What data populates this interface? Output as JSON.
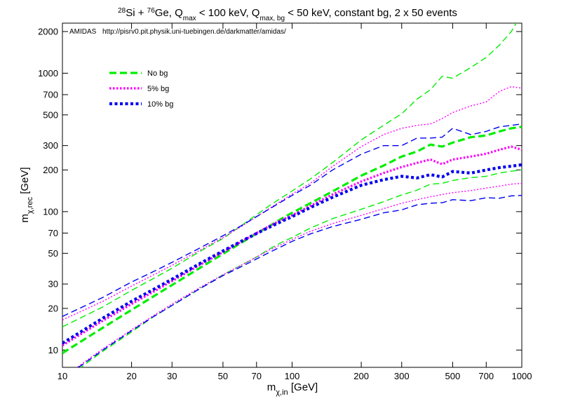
{
  "chart_data": {
    "type": "line",
    "title_parts": {
      "a_sup": "28",
      "a": "Si + ",
      "b_sup": "76",
      "b": "Ge, Q",
      "c_sub": "max",
      "c": " < 100 keV, Q",
      "d_sub": "max, bg",
      "d": " < 50 keV, constant bg, 2 x 50 events"
    },
    "annotation": {
      "program": "AMIDAS",
      "url": "http://pisrv0.pit.physik.uni-tuebingen.de/darkmatter/amidas/"
    },
    "xlabel": {
      "main": "m",
      "sub": "χ,in",
      "unit": " [GeV]"
    },
    "ylabel": {
      "main": "m",
      "sub": "χ,rec",
      "unit": " [GeV]"
    },
    "x_scale": "log",
    "y_scale": "log",
    "xlim": [
      10,
      1000
    ],
    "ylim": [
      7.5,
      2300
    ],
    "x_ticks": [
      10,
      20,
      30,
      50,
      70,
      100,
      200,
      300,
      500,
      700,
      1000
    ],
    "y_ticks": [
      10,
      20,
      30,
      50,
      70,
      100,
      200,
      300,
      500,
      700,
      1000,
      2000
    ],
    "legend_position": "top-left",
    "x": [
      10,
      15,
      20,
      25,
      30,
      40,
      50,
      60,
      70,
      80,
      90,
      100,
      120,
      150,
      200,
      250,
      300,
      350,
      400,
      450,
      500,
      600,
      700,
      800,
      900,
      1000
    ],
    "series": [
      {
        "name": "No bg",
        "legend": true,
        "color": "#00ee00",
        "style": "bold-dash",
        "values": [
          9.5,
          14.5,
          19.5,
          24.5,
          29.5,
          39.5,
          49.5,
          59.5,
          69.5,
          79,
          89,
          98,
          115,
          140,
          182,
          215,
          250,
          272,
          305,
          295,
          315,
          345,
          355,
          380,
          400,
          410
        ]
      },
      {
        "name": "No bg upper",
        "legend": false,
        "color": "#00ee00",
        "style": "thin-dash",
        "values": [
          14.7,
          20.5,
          27,
          33,
          39,
          52,
          64,
          79,
          95,
          111,
          126,
          141,
          172,
          226,
          330,
          420,
          510,
          650,
          760,
          950,
          920,
          1100,
          1300,
          1600,
          2000,
          2700
        ]
      },
      {
        "name": "No bg lower",
        "legend": false,
        "color": "#00ee00",
        "style": "thin-dash",
        "values": [
          6.0,
          9.8,
          13.5,
          17.5,
          21,
          28,
          35,
          41,
          47,
          54,
          60,
          65,
          76,
          89,
          104,
          118,
          132,
          143,
          158,
          160,
          168,
          176,
          180,
          190,
          196,
          200
        ]
      },
      {
        "name": "5% bg",
        "legend": true,
        "color": "#ff00ff",
        "style": "dotted",
        "values": [
          10.8,
          16.3,
          21.5,
          26.5,
          31.5,
          41.5,
          51,
          60.5,
          70,
          79,
          87,
          94,
          110,
          133,
          165,
          190,
          210,
          225,
          238,
          220,
          238,
          250,
          262,
          280,
          295,
          280
        ]
      },
      {
        "name": "5% bg upper",
        "legend": false,
        "color": "#ff00ff",
        "style": "thin-dot",
        "values": [
          16.5,
          22.5,
          29,
          35,
          41,
          53,
          65,
          78,
          92,
          106,
          120,
          134,
          160,
          212,
          295,
          360,
          400,
          420,
          430,
          470,
          520,
          580,
          620,
          740,
          800,
          780
        ]
      },
      {
        "name": "5% bg lower",
        "legend": false,
        "color": "#ff00ff",
        "style": "thin-dot",
        "values": [
          6.3,
          10.2,
          14,
          17.8,
          21.5,
          28.5,
          35,
          41,
          47,
          53,
          58,
          63,
          72,
          82,
          94,
          105,
          115,
          122,
          128,
          133,
          137,
          142,
          148,
          153,
          158,
          160
        ]
      },
      {
        "name": "10% bg",
        "legend": true,
        "color": "#0000ee",
        "style": "bold-dot",
        "values": [
          11.2,
          17,
          22.5,
          27.5,
          32.5,
          42.5,
          52,
          61,
          69.5,
          77.5,
          85,
          92,
          107,
          127,
          155,
          170,
          180,
          175,
          185,
          178,
          195,
          190,
          200,
          208,
          213,
          218
        ]
      },
      {
        "name": "10% bg upper",
        "legend": false,
        "color": "#0000ee",
        "style": "thin-dash",
        "values": [
          17.5,
          24,
          31,
          37,
          43,
          55,
          67,
          79,
          92,
          105,
          118,
          131,
          155,
          200,
          260,
          300,
          300,
          340,
          340,
          345,
          400,
          360,
          380,
          410,
          420,
          430
        ]
      },
      {
        "name": "10% bg lower",
        "legend": false,
        "color": "#0000ee",
        "style": "thin-dash",
        "values": [
          6.2,
          10,
          13.8,
          17.5,
          21,
          28,
          34.5,
          40,
          45.5,
          51,
          56,
          61,
          69,
          78,
          88,
          98,
          103,
          112,
          115,
          116,
          122,
          120,
          126,
          125,
          130,
          131
        ]
      }
    ]
  }
}
